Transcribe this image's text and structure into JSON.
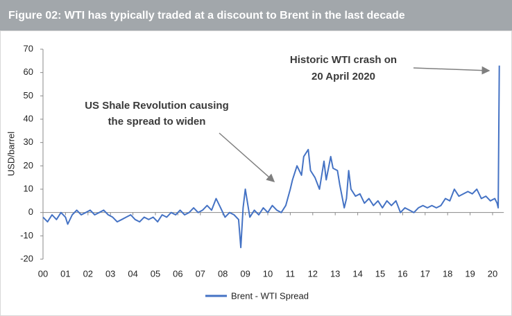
{
  "chart_data": {
    "type": "line",
    "title": "Figure 02: WTI has typically traded at a discount to Brent in the last decade",
    "y_label": "USD/barrel",
    "x": [
      0,
      0.2,
      0.4,
      0.6,
      0.8,
      1.0,
      1.1,
      1.3,
      1.5,
      1.7,
      1.9,
      2.1,
      2.3,
      2.5,
      2.7,
      2.9,
      3.1,
      3.3,
      3.5,
      3.7,
      3.9,
      4.1,
      4.3,
      4.5,
      4.7,
      4.9,
      5.1,
      5.3,
      5.5,
      5.7,
      5.9,
      6.1,
      6.3,
      6.5,
      6.7,
      6.9,
      7.1,
      7.3,
      7.5,
      7.7,
      7.9,
      8.1,
      8.3,
      8.5,
      8.7,
      8.8,
      8.9,
      9.0,
      9.2,
      9.4,
      9.6,
      9.8,
      10.0,
      10.2,
      10.4,
      10.6,
      10.8,
      11.0,
      11.1,
      11.3,
      11.5,
      11.6,
      11.8,
      11.9,
      12.1,
      12.3,
      12.5,
      12.6,
      12.8,
      12.9,
      13.1,
      13.2,
      13.4,
      13.5,
      13.6,
      13.7,
      13.9,
      14.1,
      14.3,
      14.5,
      14.7,
      14.9,
      15.1,
      15.3,
      15.5,
      15.7,
      15.9,
      16.1,
      16.3,
      16.5,
      16.7,
      16.9,
      17.1,
      17.3,
      17.5,
      17.7,
      17.9,
      18.1,
      18.3,
      18.5,
      18.7,
      18.9,
      19.1,
      19.3,
      19.5,
      19.7,
      19.9,
      20.1,
      20.2,
      20.25,
      20.3
    ],
    "series": [
      {
        "name": "Brent - WTI Spread",
        "color": "#4472c4",
        "values": [
          -2,
          -4,
          -1,
          -3,
          0,
          -2,
          -5,
          -1,
          1,
          -1,
          0,
          1,
          -1,
          0,
          1,
          -1,
          -2,
          -4,
          -3,
          -2,
          -1,
          -3,
          -4,
          -2,
          -3,
          -2,
          -4,
          -1,
          -2,
          0,
          -1,
          1,
          -1,
          0,
          2,
          0,
          1,
          3,
          1,
          6,
          2,
          -2,
          0,
          -1,
          -3,
          -15,
          2,
          10,
          -2,
          1,
          -1,
          2,
          0,
          3,
          1,
          0,
          3,
          10,
          14,
          20,
          16,
          24,
          27,
          18,
          15,
          10,
          22,
          14,
          24,
          19,
          18,
          12,
          2,
          6,
          18,
          10,
          7,
          8,
          4,
          6,
          3,
          5,
          2,
          5,
          3,
          5,
          0,
          2,
          1,
          0,
          2,
          3,
          2,
          3,
          2,
          3,
          6,
          5,
          10,
          7,
          8,
          9,
          8,
          10,
          6,
          7,
          5,
          6,
          4,
          2,
          63
        ]
      }
    ],
    "xlim": [
      0,
      20.5
    ],
    "xticks": [
      {
        "value": 0,
        "label": "00"
      },
      {
        "value": 1,
        "label": "01"
      },
      {
        "value": 2,
        "label": "02"
      },
      {
        "value": 3,
        "label": "03"
      },
      {
        "value": 4,
        "label": "04"
      },
      {
        "value": 5,
        "label": "05"
      },
      {
        "value": 6,
        "label": "06"
      },
      {
        "value": 7,
        "label": "07"
      },
      {
        "value": 8,
        "label": "08"
      },
      {
        "value": 9,
        "label": "09"
      },
      {
        "value": 10,
        "label": "10"
      },
      {
        "value": 11,
        "label": "11"
      },
      {
        "value": 12,
        "label": "12"
      },
      {
        "value": 13,
        "label": "13"
      },
      {
        "value": 14,
        "label": "14"
      },
      {
        "value": 15,
        "label": "15"
      },
      {
        "value": 16,
        "label": "16"
      },
      {
        "value": 17,
        "label": "17"
      },
      {
        "value": 18,
        "label": "18"
      },
      {
        "value": 19,
        "label": "19"
      },
      {
        "value": 20,
        "label": "20"
      }
    ],
    "ylim": [
      -20,
      70
    ],
    "yticks": [
      -20,
      -10,
      0,
      10,
      20,
      30,
      40,
      50,
      60,
      70
    ],
    "annotations": [
      [
        "Historic WTI crash on",
        "20 April 2020"
      ],
      [
        "US Shale Revolution causing",
        "the spread to widen"
      ]
    ]
  }
}
